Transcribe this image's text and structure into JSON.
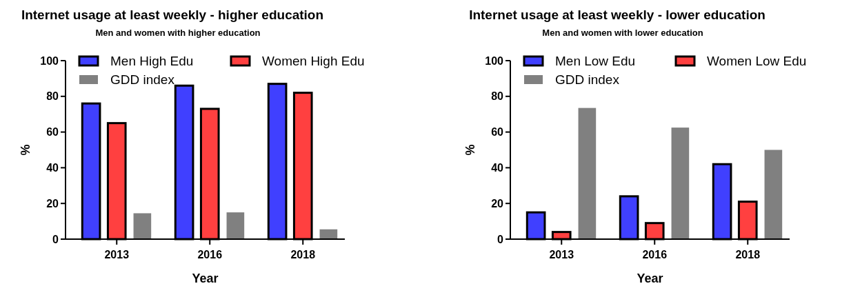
{
  "chart_data": [
    {
      "type": "bar",
      "title": "Internet usage at least weekly - higher education",
      "subtitle": "Men and women with higher education",
      "xlabel": "Year",
      "ylabel": "%",
      "categories": [
        "2013",
        "2016",
        "2018"
      ],
      "ylim": [
        0,
        100
      ],
      "yticks": [
        0,
        20,
        40,
        60,
        80,
        100
      ],
      "legend": "top",
      "grid": false,
      "series": [
        {
          "name": "Men High Edu",
          "color": "#4040ff",
          "values": [
            76,
            86,
            87
          ]
        },
        {
          "name": "Women High Edu",
          "color": "#ff4040",
          "values": [
            65,
            73,
            82
          ]
        },
        {
          "name": "GDD index",
          "color": "#808080",
          "values": [
            14.5,
            15,
            5.5
          ]
        }
      ]
    },
    {
      "type": "bar",
      "title": "Internet usage at least weekly - lower education",
      "subtitle": "Men and women with lower education",
      "xlabel": "Year",
      "ylabel": "%",
      "categories": [
        "2013",
        "2016",
        "2018"
      ],
      "ylim": [
        0,
        100
      ],
      "yticks": [
        0,
        20,
        40,
        60,
        80,
        100
      ],
      "legend": "top",
      "grid": false,
      "series": [
        {
          "name": "Men Low Edu",
          "color": "#4040ff",
          "values": [
            15,
            24,
            42
          ]
        },
        {
          "name": "Women Low Edu",
          "color": "#ff4040",
          "values": [
            4,
            9,
            21
          ]
        },
        {
          "name": "GDD index",
          "color": "#808080",
          "values": [
            73.5,
            62.5,
            50
          ]
        }
      ]
    }
  ]
}
